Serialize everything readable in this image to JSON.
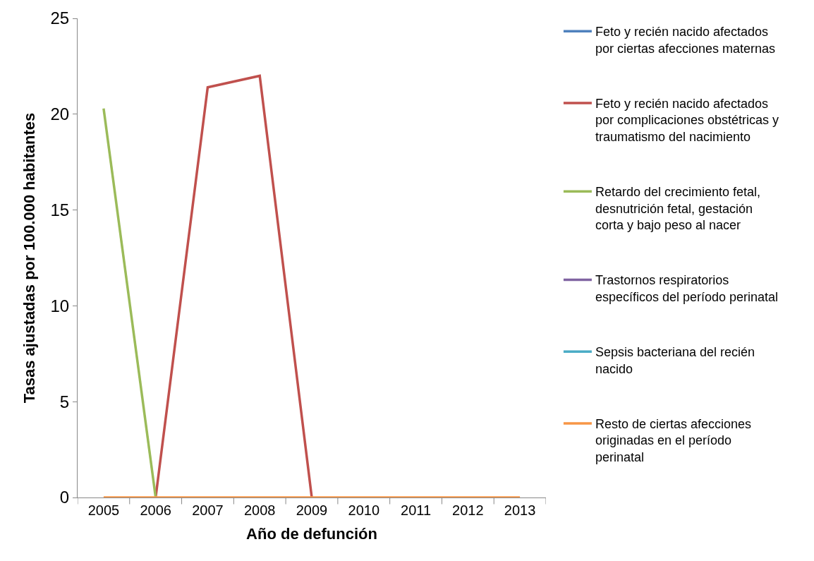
{
  "chart_data": {
    "type": "line",
    "xlabel": "Año de defunción",
    "ylabel": "Tasas ajustadas por 100.000 habitantes",
    "categories": [
      "2005",
      "2006",
      "2007",
      "2008",
      "2009",
      "2010",
      "2011",
      "2012",
      "2013"
    ],
    "series": [
      {
        "name": "Feto y recién nacido afectados por ciertas afecciones maternas",
        "color": "#4f81bd",
        "values": [
          null,
          null,
          null,
          null,
          null,
          null,
          null,
          null,
          null
        ]
      },
      {
        "name": "Feto y recién nacido afectados por complicaciones obstétricas y traumatismo del nacimiento",
        "color": "#c0504d",
        "values": [
          null,
          0,
          21.4,
          22.0,
          0,
          null,
          null,
          null,
          null
        ]
      },
      {
        "name": "Retardo del crecimiento fetal, desnutrición fetal, gestación corta y bajo peso al nacer",
        "color": "#9bbb59",
        "values": [
          20.3,
          0,
          null,
          null,
          null,
          null,
          null,
          null,
          null
        ]
      },
      {
        "name": "Trastornos respiratorios específicos del período perinatal",
        "color": "#8064a2",
        "values": [
          null,
          null,
          null,
          null,
          null,
          null,
          null,
          null,
          null
        ]
      },
      {
        "name": "Sepsis bacteriana del recién nacido",
        "color": "#4bacc6",
        "values": [
          null,
          null,
          null,
          null,
          null,
          null,
          null,
          null,
          null
        ]
      },
      {
        "name": "Resto de ciertas afecciones originadas en el período perinatal",
        "color": "#f79646",
        "values": [
          0,
          0,
          0,
          0,
          0,
          0,
          0,
          0,
          0
        ]
      }
    ],
    "ylim": [
      0,
      25
    ],
    "yticks": [
      0,
      5,
      10,
      15,
      20,
      25
    ],
    "legend": "right",
    "marker": "none",
    "line_style": "solid"
  }
}
